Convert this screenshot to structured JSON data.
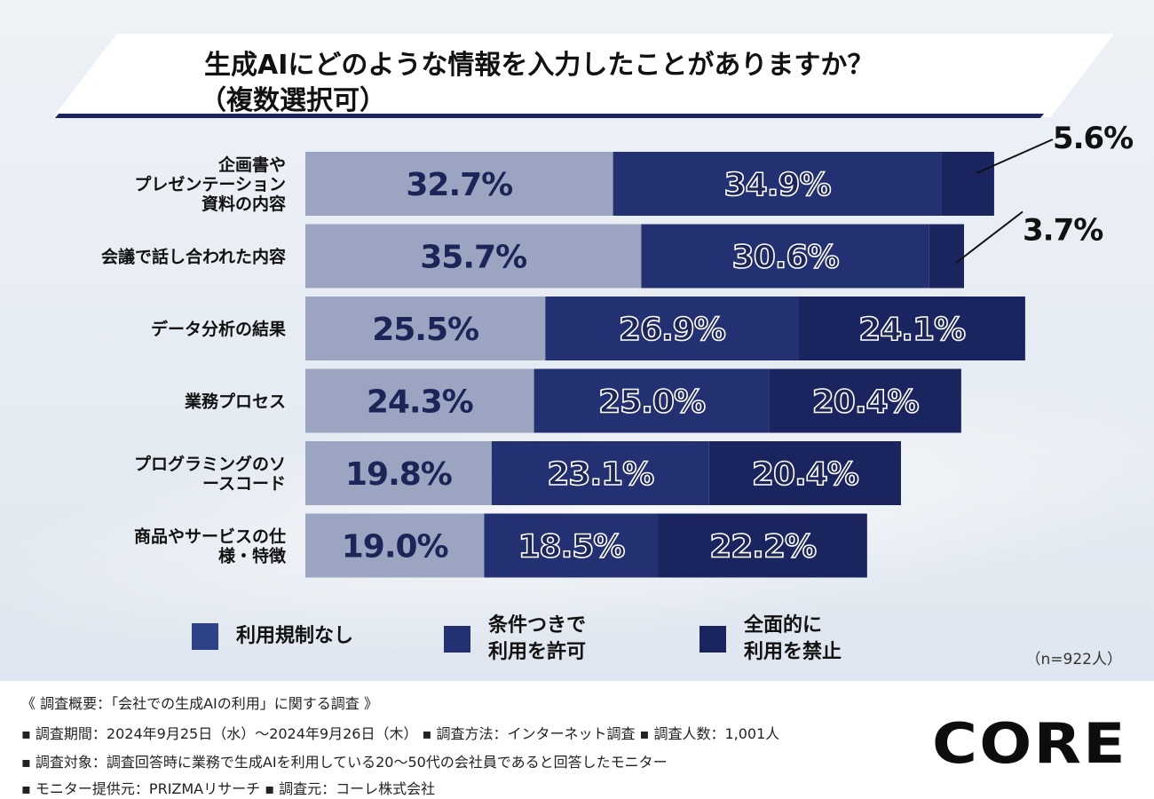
{
  "header": {
    "title_line_1": "生成AIにどのような情報を入力したことがありますか？",
    "title_line_2": "（複数選択可）"
  },
  "colors": {
    "no_restriction": "#9ba5c2",
    "conditional": "#233173",
    "full_ban": "#1a2560",
    "legend_no_restriction": "#2e4287"
  },
  "chart_data": {
    "type": "bar",
    "orientation": "horizontal",
    "stacked": true,
    "xlim": [
      0,
      100
    ],
    "categories": [
      [
        "企画書や",
        "プレゼンテーション",
        "資料の内容"
      ],
      [
        "会議で話し合われた内容"
      ],
      [
        "データ分析の結果"
      ],
      [
        "業務プロセス"
      ],
      [
        "プログラミングのソ",
        "ースコード"
      ],
      [
        "商品やサービスの仕",
        "様・特徴"
      ]
    ],
    "series": [
      {
        "name": "利用規制なし",
        "values": [
          32.7,
          35.7,
          25.5,
          24.3,
          19.8,
          19.0
        ],
        "labels": [
          "32.7%",
          "35.7%",
          "25.5%",
          "24.3%",
          "19.8%",
          "19.0%"
        ]
      },
      {
        "name": "条件つきで利用を許可",
        "values": [
          34.9,
          30.6,
          26.9,
          25.0,
          23.1,
          18.5
        ],
        "labels": [
          "34.9%",
          "30.6%",
          "26.9%",
          "25.0%",
          "23.1%",
          "18.5%"
        ]
      },
      {
        "name": "全面的に利用を禁止",
        "values": [
          5.6,
          3.7,
          24.1,
          20.4,
          20.4,
          22.2
        ],
        "labels": [
          "5.6%",
          "3.7%",
          "24.1%",
          "20.4%",
          "20.4%",
          "22.2%"
        ]
      }
    ]
  },
  "legend": [
    {
      "label": "利用規制なし"
    },
    {
      "line1": "条件つきで",
      "line2": "利用を許可"
    },
    {
      "line1": "全面的に",
      "line2": "利用を禁止"
    }
  ],
  "sample_note": "（n=922人）",
  "footer": {
    "heading": "《 調査概要：「会社での生成AIの利用」に関する調査 》",
    "line_1": "▪ 調査期間：2024年9月25日（水）～2024年9月26日（木） ▪ 調査方法：インターネット調査 ▪ 調査人数：1,001人",
    "line_2": "▪ 調査対象：調査回答時に業務で生成AIを利用している20～50代の会社員であると回答したモニター",
    "line_3": "▪ モニター提供元：PRIZMAリサーチ ▪ 調査元：コーレ株式会社"
  },
  "logo": {
    "text": "CORE"
  }
}
